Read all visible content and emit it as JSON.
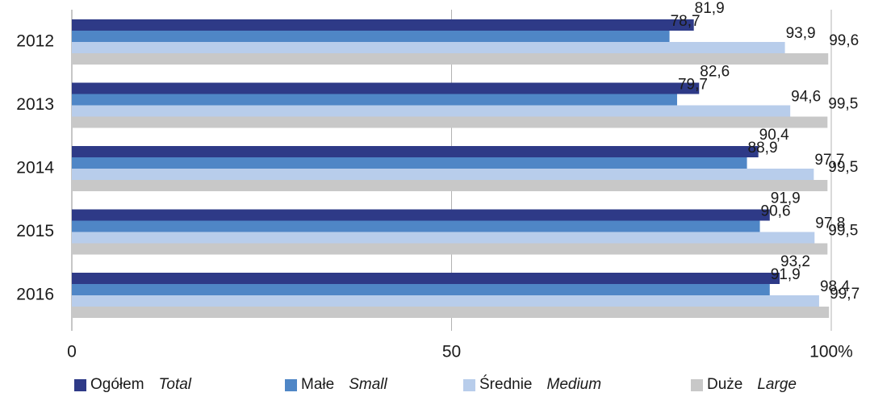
{
  "chart_data": {
    "type": "bar",
    "orientation": "horizontal",
    "categories": [
      "2012",
      "2013",
      "2014",
      "2015",
      "2016"
    ],
    "series": [
      {
        "name": "Ogółem",
        "name_en": "Total",
        "color": "#2e3a87",
        "values": [
          81.9,
          82.6,
          90.4,
          91.9,
          93.2
        ],
        "labels": [
          "81,9",
          "82,6",
          "90,4",
          "91,9",
          "93,2"
        ]
      },
      {
        "name": "Małe",
        "name_en": "Small",
        "color": "#4f86c6",
        "values": [
          78.7,
          79.7,
          88.9,
          90.6,
          91.9
        ],
        "labels": [
          "78,7",
          "79,7",
          "88,9",
          "90,6",
          "91,9"
        ]
      },
      {
        "name": "Średnie",
        "name_en": "Medium",
        "color": "#b8cdeb",
        "values": [
          93.9,
          94.6,
          97.7,
          97.8,
          98.4
        ],
        "labels": [
          "93,9",
          "94,6",
          "97,7",
          "97,8",
          "98,4"
        ]
      },
      {
        "name": "Duże",
        "name_en": "Large",
        "color": "#c8c8c8",
        "values": [
          99.6,
          99.5,
          99.5,
          99.5,
          99.7
        ],
        "labels": [
          "99,6",
          "99,5",
          "99,5",
          "99,5",
          "99,7"
        ]
      }
    ],
    "xlim": [
      0,
      100
    ],
    "xticks": [
      0,
      50,
      100
    ],
    "xtick_labels": [
      "0",
      "50",
      "100%"
    ],
    "grid": "vertical",
    "legend_position": "bottom"
  }
}
